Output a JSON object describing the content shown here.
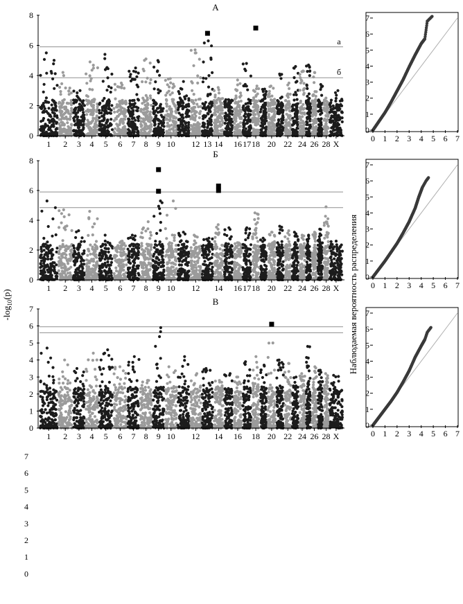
{
  "figure": {
    "y_axis_label": "-log10(p)",
    "y_axis_label_base": "-log",
    "y_axis_label_sub": "10",
    "y_axis_label_tail": "(p)",
    "qq_y_axis_label": "Наблюдаемая вероятность распределения",
    "stray_ticks": [
      "7",
      "6",
      "5",
      "4",
      "3",
      "2",
      "1",
      "0"
    ]
  },
  "colors": {
    "odd_chromosome": "#1c1c1c",
    "even_chromosome": "#9b9b9b",
    "threshold_line": "#8f8f8f",
    "qq_points": "#3a3a3a",
    "qq_diagonal": "#b0b0b0"
  },
  "chart_data": [
    {
      "type": "scatter",
      "panel": "manhattan",
      "title": "А",
      "ylim": [
        0,
        8
      ],
      "y_ticks": [
        "0",
        "2",
        "4",
        "6",
        "8"
      ],
      "x_tick_labels": [
        "1",
        "2",
        "3",
        "4",
        "5",
        "6",
        "7",
        "8",
        "9",
        "10",
        "12",
        "13",
        "14",
        "16",
        "17",
        "18",
        "20",
        "22",
        "24",
        "26",
        "28",
        "X"
      ],
      "chromosomes": 29,
      "peaks": [
        5.5,
        4.2,
        3.0,
        4.9,
        5.4,
        3.5,
        4.5,
        5.1,
        5.0,
        3.8,
        3.6,
        5.7,
        6.3,
        3.2,
        2.4,
        3.7,
        4.8,
        3.3,
        3.1,
        3.3,
        4.1,
        3.5,
        4.6,
        4.3,
        4.7,
        4.2,
        3.4,
        2.5,
        3.0
      ],
      "thresholds": [
        {
          "y": 5.9,
          "label": "а"
        },
        {
          "y": 3.85,
          "label": "б"
        }
      ],
      "highlight_markers": [
        {
          "chromosome": 13,
          "y": 6.8
        },
        {
          "chromosome": 18,
          "y": 7.15
        }
      ]
    },
    {
      "type": "scatter",
      "panel": "manhattan",
      "title": "Б",
      "ylim": [
        0,
        8
      ],
      "y_ticks": [
        "0",
        "2",
        "4",
        "6",
        "8"
      ],
      "x_tick_labels": [
        "1",
        "2",
        "3",
        "4",
        "5",
        "6",
        "7",
        "8",
        "9",
        "10",
        "12",
        "14",
        "16",
        "17",
        "18",
        "20",
        "22",
        "24",
        "26",
        "28",
        "X"
      ],
      "chromosomes": 29,
      "peaks": [
        5.3,
        4.7,
        3.3,
        4.6,
        3.0,
        2.6,
        3.0,
        3.9,
        5.3,
        5.3,
        3.2,
        3.0,
        2.8,
        3.7,
        3.5,
        2.5,
        3.5,
        4.5,
        2.8,
        3.2,
        3.6,
        3.3,
        3.2,
        3.0,
        3.0,
        3.2,
        3.4,
        4.9,
        2.6
      ],
      "thresholds": [
        {
          "y": 5.9,
          "label": ""
        },
        {
          "y": 4.85,
          "label": ""
        }
      ],
      "highlight_markers": [
        {
          "chromosome": 9,
          "y": 7.4
        },
        {
          "chromosome": 9,
          "y": 5.95
        },
        {
          "chromosome": 14,
          "y": 6.3
        },
        {
          "chromosome": 14,
          "y": 6.0
        }
      ]
    },
    {
      "type": "scatter",
      "panel": "manhattan",
      "title": "В",
      "ylim": [
        0,
        7
      ],
      "y_ticks": [
        "0",
        "1",
        "2",
        "3",
        "4",
        "5",
        "6",
        "7"
      ],
      "x_tick_labels": [
        "1",
        "2",
        "3",
        "4",
        "5",
        "6",
        "7",
        "8",
        "9",
        "10",
        "12",
        "14",
        "16",
        "18",
        "20",
        "22",
        "24",
        "26",
        "28",
        "X"
      ],
      "chromosomes": 29,
      "peaks": [
        4.7,
        4.0,
        3.5,
        4.4,
        4.6,
        3.6,
        4.2,
        2.8,
        5.9,
        3.6,
        4.2,
        3.2,
        3.5,
        2.8,
        3.2,
        3.0,
        3.9,
        4.2,
        3.7,
        5.0,
        4.0,
        3.8,
        3.0,
        3.2,
        4.8,
        3.6,
        3.4,
        3.2,
        3.1
      ],
      "thresholds": [
        {
          "y": 5.95,
          "label": ""
        },
        {
          "y": 5.6,
          "label": ""
        }
      ],
      "highlight_markers": [
        {
          "chromosome": 20,
          "y": 6.1
        }
      ]
    },
    {
      "type": "scatter",
      "panel": "qq",
      "title": "",
      "xlim": [
        0,
        7
      ],
      "ylim": [
        0,
        7
      ],
      "x_ticks": [
        "0",
        "1",
        "2",
        "3",
        "4",
        "5",
        "6",
        "7"
      ],
      "y_ticks": [
        "0",
        "1",
        "2",
        "3",
        "4",
        "5",
        "6",
        "7"
      ],
      "curve": [
        [
          0,
          0
        ],
        [
          0.5,
          0.55
        ],
        [
          1.0,
          1.1
        ],
        [
          1.5,
          1.75
        ],
        [
          2.0,
          2.45
        ],
        [
          2.5,
          3.15
        ],
        [
          3.0,
          3.95
        ],
        [
          3.5,
          4.7
        ],
        [
          4.0,
          5.4
        ],
        [
          4.3,
          5.7
        ],
        [
          4.5,
          6.8
        ],
        [
          4.9,
          7.1
        ]
      ]
    },
    {
      "type": "scatter",
      "panel": "qq",
      "title": "",
      "xlim": [
        0,
        7
      ],
      "ylim": [
        0,
        7
      ],
      "x_ticks": [
        "0",
        "1",
        "2",
        "3",
        "4",
        "5",
        "6",
        "7"
      ],
      "y_ticks": [
        "0",
        "1",
        "2",
        "3",
        "4",
        "5",
        "6",
        "7"
      ],
      "curve": [
        [
          0,
          0
        ],
        [
          0.5,
          0.5
        ],
        [
          1.0,
          1.0
        ],
        [
          1.5,
          1.55
        ],
        [
          2.0,
          2.1
        ],
        [
          2.5,
          2.75
        ],
        [
          3.0,
          3.45
        ],
        [
          3.5,
          4.3
        ],
        [
          3.8,
          5.0
        ],
        [
          4.1,
          5.6
        ],
        [
          4.4,
          6.0
        ],
        [
          4.6,
          6.2
        ]
      ]
    },
    {
      "type": "scatter",
      "panel": "qq",
      "title": "",
      "xlim": [
        0,
        7
      ],
      "ylim": [
        0,
        7
      ],
      "x_ticks": [
        "0",
        "1",
        "2",
        "3",
        "4",
        "5",
        "6",
        "7"
      ],
      "y_ticks": [
        "0",
        "1",
        "2",
        "3",
        "4",
        "5",
        "6",
        "7"
      ],
      "curve": [
        [
          0,
          0
        ],
        [
          0.5,
          0.5
        ],
        [
          1.0,
          1.0
        ],
        [
          1.5,
          1.5
        ],
        [
          2.0,
          2.05
        ],
        [
          2.5,
          2.7
        ],
        [
          3.0,
          3.4
        ],
        [
          3.5,
          4.25
        ],
        [
          4.0,
          4.95
        ],
        [
          4.3,
          5.35
        ],
        [
          4.5,
          5.8
        ],
        [
          4.8,
          6.1
        ]
      ]
    }
  ]
}
